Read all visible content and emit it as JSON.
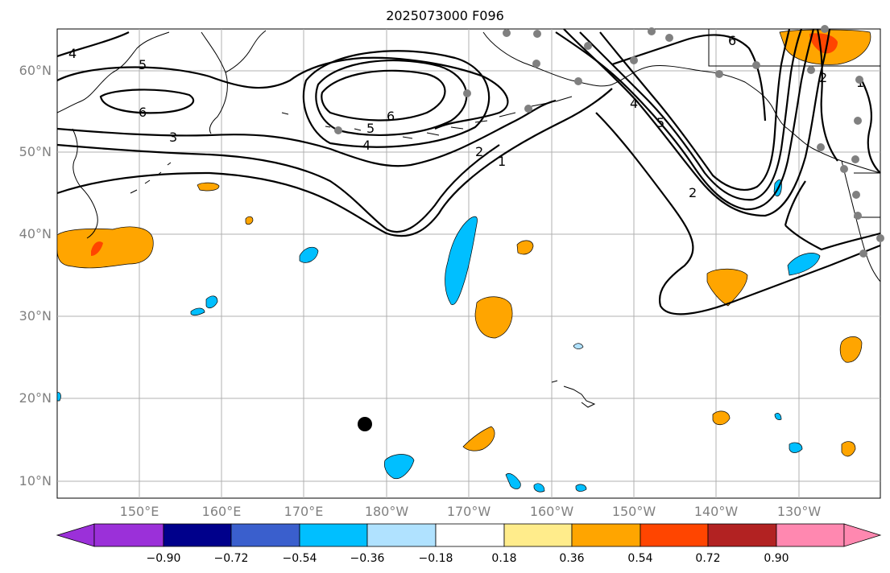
{
  "title": "2025073000 F096",
  "axes": {
    "lat_labels": [
      {
        "label": "60°N",
        "value": 60
      },
      {
        "label": "50°N",
        "value": 50
      },
      {
        "label": "40°N",
        "value": 40
      },
      {
        "label": "30°N",
        "value": 30
      },
      {
        "label": "20°N",
        "value": 20
      },
      {
        "label": "10°N",
        "value": 10
      }
    ],
    "lon_labels": [
      {
        "label": "150°E",
        "value": 150
      },
      {
        "label": "160°E",
        "value": 160
      },
      {
        "label": "170°E",
        "value": 170
      },
      {
        "label": "180°W",
        "value": 180
      },
      {
        "label": "170°W",
        "value": 190
      },
      {
        "label": "160°W",
        "value": 200
      },
      {
        "label": "150°W",
        "value": 210
      },
      {
        "label": "140°W",
        "value": 220
      },
      {
        "label": "130°W",
        "value": 230
      }
    ],
    "lat_range": [
      8,
      65
    ],
    "lon_range": [
      140,
      240
    ]
  },
  "contour_labels": [
    "4",
    "5",
    "6",
    "3",
    "6",
    "5",
    "4",
    "2",
    "1",
    "4",
    "5",
    "2",
    "6",
    "2",
    "1"
  ],
  "colorbar": {
    "ticks": [
      "−0.90",
      "−0.72",
      "−0.54",
      "−0.36",
      "−0.18",
      "0.18",
      "0.36",
      "0.54",
      "0.72",
      "0.90"
    ],
    "colors": [
      "#9b30d9",
      "#00008b",
      "#3a5fcd",
      "#00bfff",
      "#b0e2ff",
      "#ffffff",
      "#ffec8b",
      "#ffa500",
      "#ff4500",
      "#b22222",
      "#ff88b0"
    ]
  },
  "colors": {
    "gridline": "#b0b0b0",
    "contour": "#000000",
    "station_dot": "#808080",
    "marker": "#000000"
  }
}
